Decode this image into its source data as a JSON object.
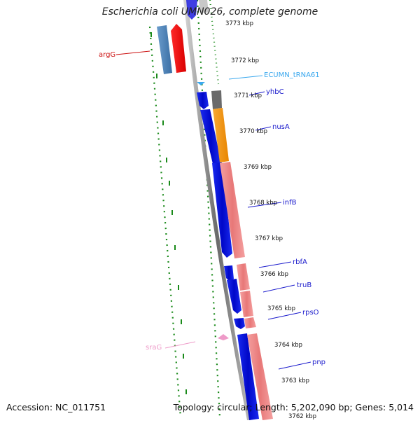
{
  "header": {
    "title": "Escherichia coli UMN026, complete genome"
  },
  "footer": {
    "accession": "Accession: NC_011751",
    "stats": "Topology: circular; Length: 5,202,090 bp; Genes: 5,014"
  },
  "ticks": [
    "3773 kbp",
    "3772 kbp",
    "3771 kbp",
    "3770 kbp",
    "3769 kbp",
    "3768 kbp",
    "3767 kbp",
    "3766 kbp",
    "3765 kbp",
    "3764 kbp",
    "3763 kbp",
    "3762 kbp"
  ],
  "gene_labels": {
    "argG": "argG",
    "trna": "ECUMN_tRNA61",
    "yhbC": "yhbC",
    "nusA": "nusA",
    "infB": "infB",
    "rbfA": "rbfA",
    "truB": "truB",
    "rpsO": "rpsO",
    "sraG": "sraG",
    "pnp": "pnp"
  },
  "colors": {
    "cds_blue": "#0a14e6",
    "cds_steel": "#4a82b8",
    "red": "#ee1111",
    "orange": "#f59a1a",
    "salmon": "#ef8a8a",
    "gray": "#7a7a7a",
    "trna_cyan": "#3aa8ee",
    "srna_pink": "#ee9ac8",
    "label_blue": "#1a1acc",
    "tick_green": "#1a8a1a",
    "backbone": "#8a8a8a"
  }
}
